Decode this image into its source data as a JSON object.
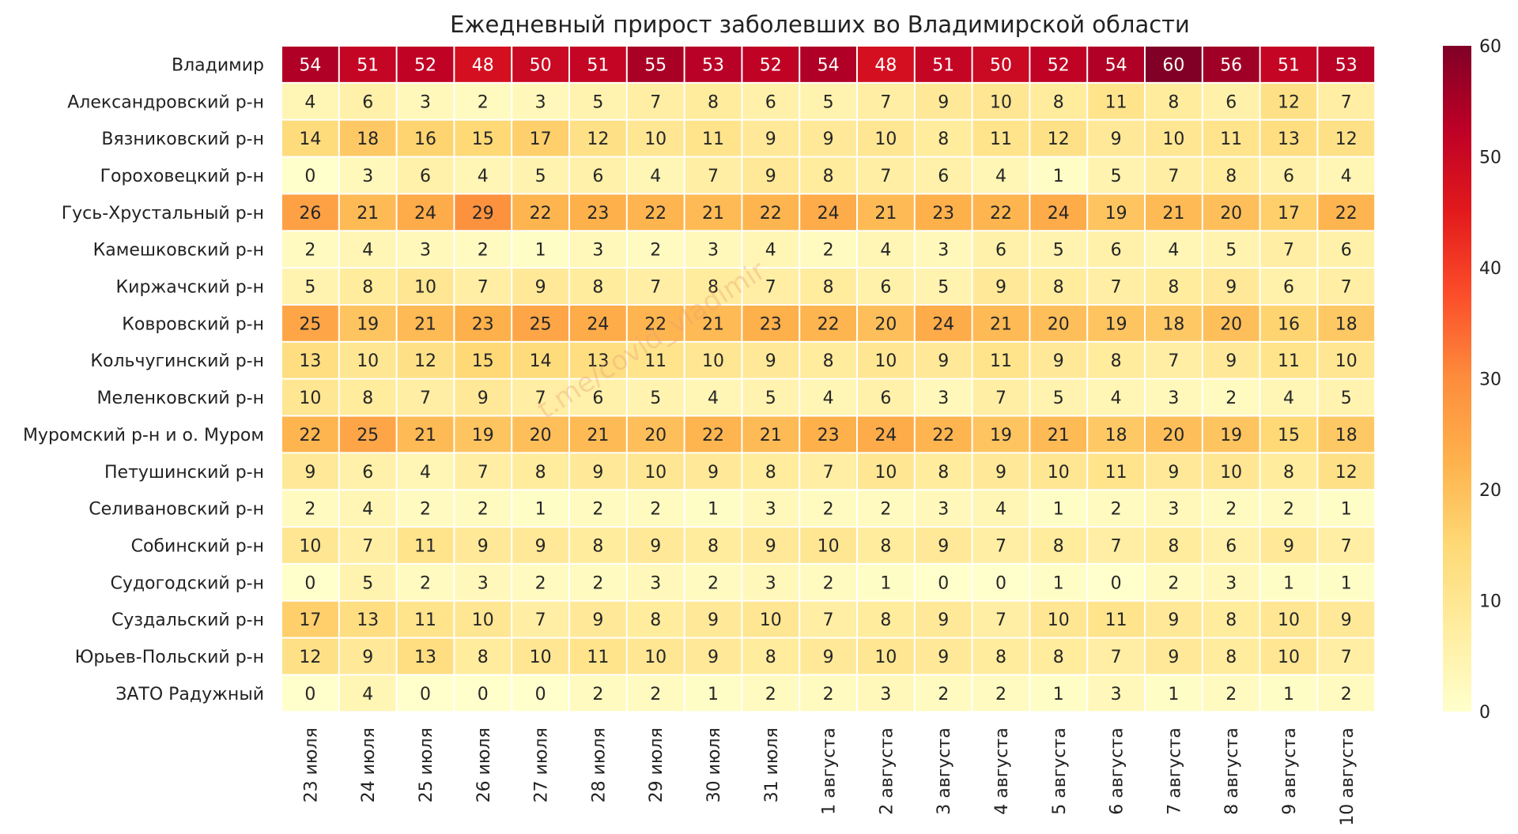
{
  "chart_data": {
    "type": "heatmap",
    "title": "Ежедневный прирост заболевших во Владимирской области",
    "watermark": "t.me/covid_vladimir",
    "columns": [
      "23 июля",
      "24 июля",
      "25 июля",
      "26 июля",
      "27 июля",
      "28 июля",
      "29 июля",
      "30 июля",
      "31 июля",
      "1 августа",
      "2 августа",
      "3 августа",
      "4 августа",
      "5 августа",
      "6 августа",
      "7 августа",
      "8 августа",
      "9 августа",
      "10 августа"
    ],
    "rows": [
      "Владимир",
      "Александровский р-н",
      "Вязниковский р-н",
      "Гороховецкий р-н",
      "Гусь-Хрустальный р-н",
      "Камешковский р-н",
      "Киржачский р-н",
      "Ковровский р-н",
      "Кольчугинский р-н",
      "Меленковский р-н",
      "Муромский р-н и о. Муром",
      "Петушинский р-н",
      "Селивановский р-н",
      "Собинский р-н",
      "Судогодский р-н",
      "Суздальский р-н",
      "Юрьев-Польский р-н",
      "ЗАТО Радужный"
    ],
    "values": [
      [
        54,
        51,
        52,
        48,
        50,
        51,
        55,
        53,
        52,
        54,
        48,
        51,
        50,
        52,
        54,
        60,
        56,
        51,
        53
      ],
      [
        4,
        6,
        3,
        2,
        3,
        5,
        7,
        8,
        6,
        5,
        7,
        9,
        10,
        8,
        11,
        8,
        6,
        12,
        7
      ],
      [
        14,
        18,
        16,
        15,
        17,
        12,
        10,
        11,
        9,
        9,
        10,
        8,
        11,
        12,
        9,
        10,
        11,
        13,
        12
      ],
      [
        0,
        3,
        6,
        4,
        5,
        6,
        4,
        7,
        9,
        8,
        7,
        6,
        4,
        1,
        5,
        7,
        8,
        6,
        4
      ],
      [
        26,
        21,
        24,
        29,
        22,
        23,
        22,
        21,
        22,
        24,
        21,
        23,
        22,
        24,
        19,
        21,
        20,
        17,
        22
      ],
      [
        2,
        4,
        3,
        2,
        1,
        3,
        2,
        3,
        4,
        2,
        4,
        3,
        6,
        5,
        6,
        4,
        5,
        7,
        6
      ],
      [
        5,
        8,
        10,
        7,
        9,
        8,
        7,
        8,
        7,
        8,
        6,
        5,
        9,
        8,
        7,
        8,
        9,
        6,
        7
      ],
      [
        25,
        19,
        21,
        23,
        25,
        24,
        22,
        21,
        23,
        22,
        20,
        24,
        21,
        20,
        19,
        18,
        20,
        16,
        18
      ],
      [
        13,
        10,
        12,
        15,
        14,
        13,
        11,
        10,
        9,
        8,
        10,
        9,
        11,
        9,
        8,
        7,
        9,
        11,
        10
      ],
      [
        10,
        8,
        7,
        9,
        7,
        6,
        5,
        4,
        5,
        4,
        6,
        3,
        7,
        5,
        4,
        3,
        2,
        4,
        5
      ],
      [
        22,
        25,
        21,
        19,
        20,
        21,
        20,
        22,
        21,
        23,
        24,
        22,
        19,
        21,
        18,
        20,
        19,
        15,
        18
      ],
      [
        9,
        6,
        4,
        7,
        8,
        9,
        10,
        9,
        8,
        7,
        10,
        8,
        9,
        10,
        11,
        9,
        10,
        8,
        12
      ],
      [
        2,
        4,
        2,
        2,
        1,
        2,
        2,
        1,
        3,
        2,
        2,
        3,
        4,
        1,
        2,
        3,
        2,
        2,
        1
      ],
      [
        10,
        7,
        11,
        9,
        9,
        8,
        9,
        8,
        9,
        10,
        8,
        9,
        7,
        8,
        7,
        8,
        6,
        9,
        7
      ],
      [
        0,
        5,
        2,
        3,
        2,
        2,
        3,
        2,
        3,
        2,
        1,
        0,
        0,
        1,
        0,
        2,
        3,
        1,
        1
      ],
      [
        17,
        13,
        11,
        10,
        7,
        9,
        8,
        9,
        10,
        7,
        8,
        9,
        7,
        10,
        11,
        9,
        8,
        10,
        9
      ],
      [
        12,
        9,
        13,
        8,
        10,
        11,
        10,
        9,
        8,
        9,
        10,
        9,
        8,
        8,
        7,
        9,
        8,
        10,
        7
      ],
      [
        0,
        4,
        0,
        0,
        0,
        2,
        2,
        1,
        2,
        2,
        3,
        2,
        2,
        1,
        3,
        1,
        2,
        1,
        2
      ]
    ],
    "vmin": 0,
    "vmax": 60,
    "colorbar_ticks": [
      0,
      10,
      20,
      30,
      40,
      50,
      60
    ],
    "colormap": "YlOrRd",
    "colormap_stops": [
      "#ffffcc",
      "#ffeda0",
      "#fed976",
      "#feb24c",
      "#fd8d3c",
      "#fc4e2a",
      "#e31a1c",
      "#bd0026",
      "#800026"
    ],
    "grid": false,
    "legend": "colorbar-right"
  }
}
